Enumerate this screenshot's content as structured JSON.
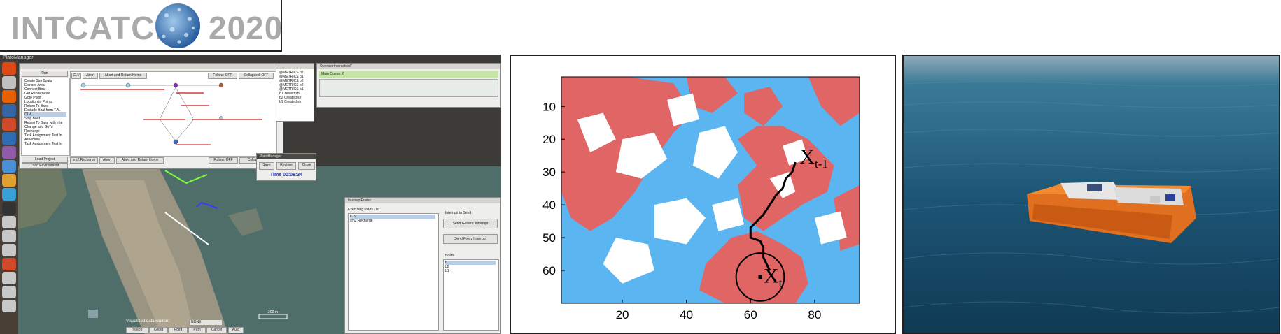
{
  "logo": {
    "left_text": "INTCATCH",
    "right_text": "2020"
  },
  "screenshot": {
    "topbar_title": "PlatoManager",
    "menu": {
      "header": "Run",
      "items": [
        "Create Sim Boats",
        "Explore Area",
        "Connect Boat",
        "Get Rendezvous",
        "Goto Point",
        "Location to Points",
        "Return To Base",
        "Exclude Boat from T.A.",
        "CLV",
        "Stop Boat",
        "Return To Base with Inte",
        "Change and GoTo",
        "Recharge",
        "Task Assignment Test In",
        "Assemble",
        "Task Assignment Test In"
      ],
      "load_project": "Load Project",
      "load_environment": "Load Environment"
    },
    "plan_toolbar": {
      "plan": "CLV",
      "abort": "Abort",
      "abort_return": "Abort and Return Home",
      "follow": "Follow: OFF",
      "collapsed": "Collapsed: OFF"
    },
    "plan_toolbar2": {
      "plan": "sm2:Recharge",
      "abort": "Abort",
      "abort_return": "Abort and Return Home",
      "follow": "Follow: OFF",
      "collapsed": "Collaps"
    },
    "dialog": {
      "title": "PlatoManager",
      "save": "Save",
      "restore": "Restore",
      "close": "Close",
      "time": "Time 00:08:34"
    },
    "operator_title": "OperatorInteractionF",
    "queue_label": "Main Queue: 0",
    "log_lines": [
      "@METRICS b2",
      "@METRICS b1",
      "@METRICS b2",
      "@METRICS b2",
      "@METRICS b1",
      "b Created sh",
      "b2 Created sh",
      "b1 Created sh"
    ],
    "interrupt": {
      "title": "InterruptFrame",
      "executing_label": "Executing Plans List",
      "executing_items": [
        "CLV",
        "sm2:Recharge"
      ],
      "send_label": "Interrupt to Send",
      "generic_button": "Send Generic Interrupt",
      "proxy_button": "Send Proxy Interrupt",
      "boats_label": "Boats",
      "boats": [
        "b",
        "b2",
        "b1"
      ]
    },
    "source_label": "Visualized data source:",
    "source_value": "NONE",
    "bottom_buttons": [
      "Teleop",
      "Coord",
      "Point",
      "Path",
      "Cancel",
      "Auto"
    ],
    "scale_label": "200 m"
  },
  "chart_data": {
    "type": "heatmap",
    "xticks": [
      "20",
      "40",
      "60",
      "80"
    ],
    "yticks": [
      "10",
      "20",
      "30",
      "40",
      "50",
      "60"
    ],
    "xlim": [
      1,
      94
    ],
    "ylim": [
      1,
      70
    ],
    "colors": {
      "obstacle": "#e06666",
      "water": "#5bb5f0",
      "unknown": "#ffffff"
    },
    "annotations": {
      "prev": "X",
      "prev_sub": "t-1",
      "current": "X",
      "current_sub": "t"
    },
    "path": [
      [
        74,
        27
      ],
      [
        73,
        30
      ],
      [
        71,
        32
      ],
      [
        70,
        35
      ],
      [
        68,
        37
      ],
      [
        66,
        40
      ],
      [
        64,
        43
      ],
      [
        62,
        45
      ],
      [
        60,
        47
      ],
      [
        60,
        50
      ],
      [
        63,
        51
      ],
      [
        64,
        53
      ],
      [
        64,
        56
      ],
      [
        66,
        60
      ]
    ],
    "circle": {
      "x": 63,
      "y": 62,
      "r": 7.5
    }
  },
  "photo": {
    "description_icon": "boat-photo"
  }
}
